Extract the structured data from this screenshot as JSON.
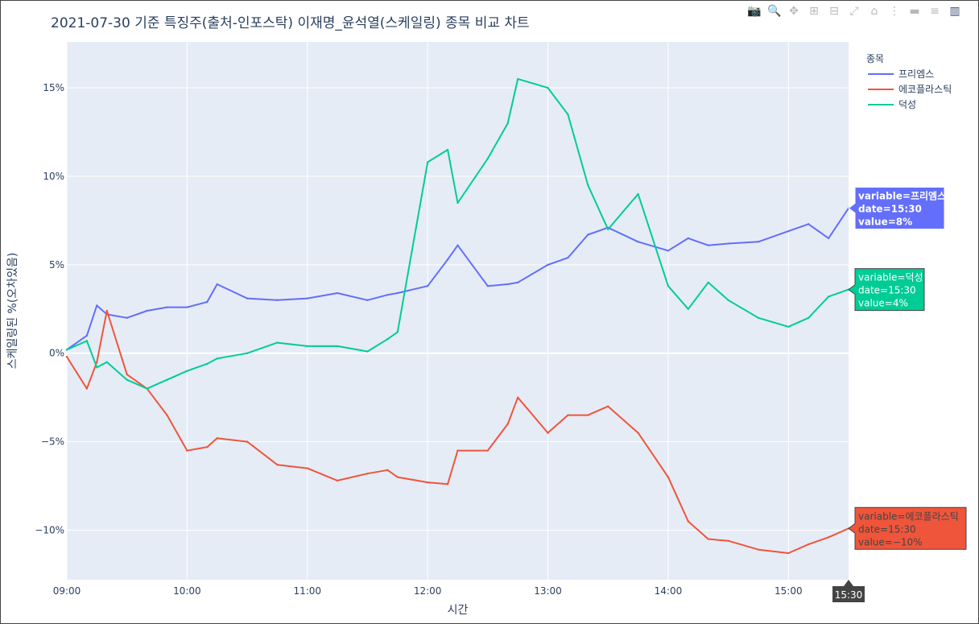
{
  "title": "2021-07-30 기준 특징주(출처-인포스탁) 이재명_윤석열(스케일링) 종목 비교 차트",
  "modebar": {
    "icons": [
      "camera-icon",
      "zoom-icon",
      "pan-icon",
      "zoom-in-icon",
      "zoom-out-icon",
      "autoscale-icon",
      "home-icon",
      "spike-lines-icon",
      "hover-closest-icon",
      "hover-compare-icon",
      "plotly-logo-icon"
    ],
    "glyphs": [
      "📷",
      "🔍",
      "✥",
      "⊞",
      "⊟",
      "⤢",
      "⌂",
      "⋮",
      "▬",
      "≡",
      "▥"
    ]
  },
  "chart_data": {
    "type": "line",
    "title": "2021-07-30 기준 특징주(출처-인포스탁) 이재명_윤석열(스케일링) 종목 비교 차트",
    "xlabel": "시간",
    "ylabel": "스케일링된 %(오차있음)",
    "x_ticks": [
      "09:00",
      "10:00",
      "11:00",
      "12:00",
      "13:00",
      "14:00",
      "15:00"
    ],
    "x_range": [
      "09:00",
      "15:30"
    ],
    "y_ticks": [
      "−10%",
      "−5%",
      "0%",
      "5%",
      "10%",
      "15%"
    ],
    "y_tick_values": [
      -10,
      -5,
      0,
      5,
      10,
      15
    ],
    "y_range": [
      -12.8,
      17.6
    ],
    "grid": true,
    "legend_title": "종목",
    "legend_position": "top-right",
    "x": [
      "09:00",
      "09:10",
      "09:15",
      "09:20",
      "09:30",
      "09:40",
      "09:50",
      "10:00",
      "10:10",
      "10:15",
      "10:30",
      "10:45",
      "11:00",
      "11:15",
      "11:30",
      "11:40",
      "11:45",
      "12:00",
      "12:10",
      "12:15",
      "12:30",
      "12:40",
      "12:45",
      "13:00",
      "13:10",
      "13:20",
      "13:30",
      "13:45",
      "14:00",
      "14:10",
      "14:20",
      "14:30",
      "14:45",
      "15:00",
      "15:10",
      "15:20",
      "15:30"
    ],
    "series": [
      {
        "name": "프리엠스",
        "color": "#636efa",
        "values": [
          0.2,
          1.0,
          2.7,
          2.2,
          2.0,
          2.4,
          2.6,
          2.6,
          2.9,
          3.9,
          3.1,
          3.0,
          3.1,
          3.4,
          3.0,
          3.3,
          3.4,
          3.8,
          5.3,
          6.1,
          3.8,
          3.9,
          4.0,
          5.0,
          5.4,
          6.7,
          7.1,
          6.3,
          5.8,
          6.5,
          6.1,
          6.2,
          6.3,
          6.9,
          7.3,
          6.5,
          8.2
        ]
      },
      {
        "name": "에코플라스틱",
        "color": "#ef553b",
        "values": [
          -0.2,
          -2.0,
          -0.5,
          2.4,
          -1.2,
          -2.0,
          -3.5,
          -5.5,
          -5.3,
          -4.8,
          -5.0,
          -6.3,
          -6.5,
          -7.2,
          -6.8,
          -6.6,
          -7.0,
          -7.3,
          -7.4,
          -5.5,
          -5.5,
          -4.0,
          -2.5,
          -4.5,
          -3.5,
          -3.5,
          -3.0,
          -4.5,
          -7.0,
          -9.5,
          -10.5,
          -10.6,
          -11.1,
          -11.3,
          -10.8,
          -10.4,
          -9.9
        ]
      },
      {
        "name": "덕성",
        "color": "#00cc96",
        "values": [
          0.2,
          0.7,
          -0.8,
          -0.5,
          -1.5,
          -2.0,
          -1.5,
          -1.0,
          -0.6,
          -0.3,
          0.0,
          0.6,
          0.4,
          0.4,
          0.1,
          0.8,
          1.2,
          10.8,
          11.5,
          8.5,
          11.0,
          13.0,
          15.5,
          15.0,
          13.5,
          9.5,
          7.0,
          9.0,
          3.8,
          2.5,
          4.0,
          3.0,
          2.0,
          1.5,
          2.0,
          3.2,
          3.6
        ]
      }
    ]
  },
  "hover_labels": [
    {
      "variable": "variable=프리엠스",
      "date": "date=15:30",
      "value": "value=8%",
      "color": "#636efa",
      "text_color": "#ffffff"
    },
    {
      "variable": "variable=덕성",
      "date": "date=15:30",
      "value": "value=4%",
      "color": "#00cc96",
      "text_color": "#ffffff"
    },
    {
      "variable": "variable=에코플라스틱",
      "date": "date=15:30",
      "value": "value=−10%",
      "color": "#ef553b",
      "text_color": "#ffffff"
    }
  ],
  "x_hover_label": "15:30"
}
